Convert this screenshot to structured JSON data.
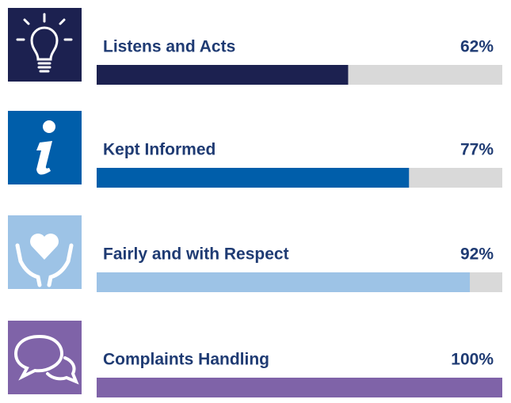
{
  "chart_data": {
    "type": "progress",
    "categories": [
      "Listens and Acts",
      "Kept Informed",
      "Fairly and with Respect",
      "Complaints Handling"
    ],
    "values": [
      62,
      77,
      92,
      100
    ],
    "value_labels": [
      "62%",
      "77%",
      "92%",
      "100%"
    ],
    "colors": [
      "#1c2150",
      "#005eaa",
      "#9dc3e6",
      "#7f63a8"
    ],
    "xlim": [
      0,
      100
    ]
  }
}
